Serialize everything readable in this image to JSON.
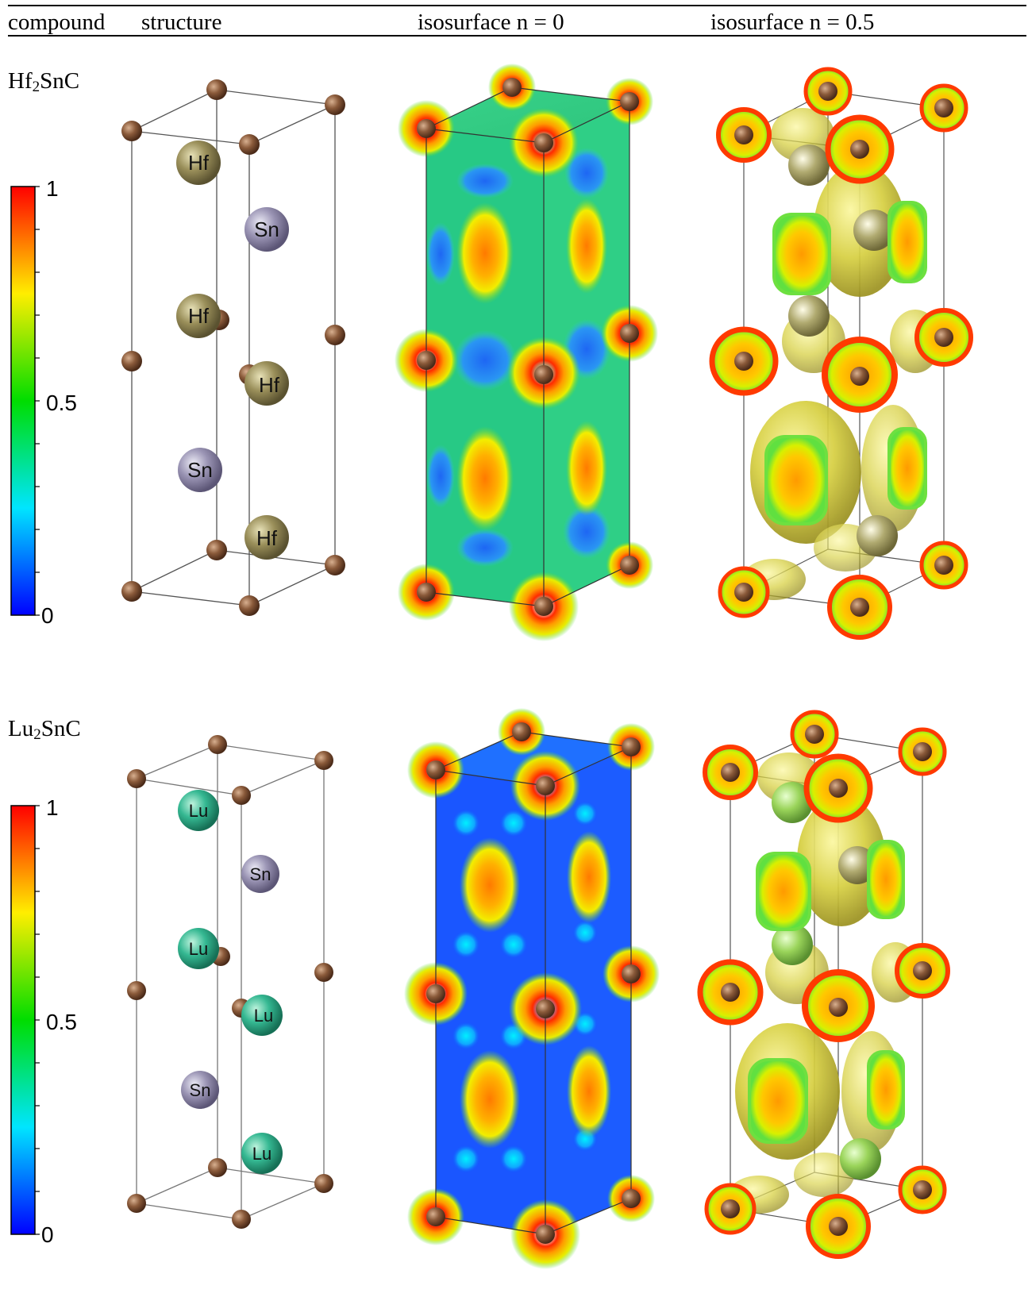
{
  "table": {
    "headers": [
      "compound",
      "structure",
      "isosurface n = 0",
      "isosurface n = 0.5"
    ],
    "rows": [
      {
        "compound": {
          "base": "Hf",
          "sub": "2",
          "rest": "SnC"
        },
        "metal": "Hf",
        "metal_color": "#8c8150",
        "sn_label": "Sn",
        "colorbar_ticks": [
          "1",
          "0.5",
          "0"
        ]
      },
      {
        "compound": {
          "base": "Lu",
          "sub": "2",
          "rest": "SnC"
        },
        "metal": "Lu",
        "metal_color": "#2fae8a",
        "sn_label": "Sn",
        "colorbar_ticks": [
          "1",
          "0.5",
          "0"
        ]
      }
    ]
  },
  "colors": {
    "carbon": "#7a5032",
    "sn": "#8c84a6",
    "scale_low": "#0000ff",
    "scale_mid": "#00e000",
    "scale_high": "#ff0000",
    "iso_shell": "#c9c23a"
  }
}
